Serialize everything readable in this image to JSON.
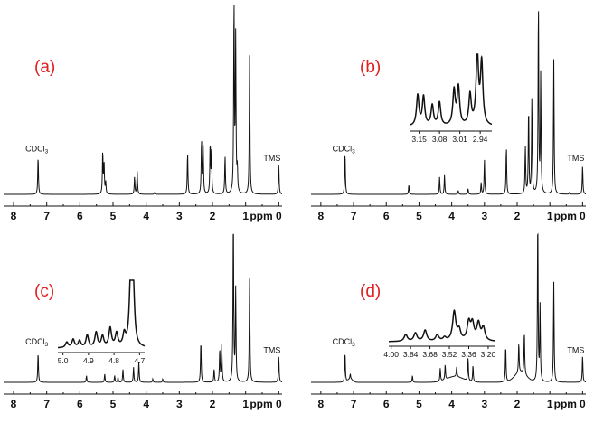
{
  "chart_data": [
    {
      "type": "line",
      "panel_label": "(a)",
      "x_unit": "ppm",
      "xlim": [
        8.3,
        -0.1
      ],
      "ticks": [
        "8",
        "7",
        "6",
        "5",
        "4",
        "3",
        "2",
        "1",
        "0"
      ],
      "baseline": "flat",
      "peaks": [
        {
          "x": 7.26,
          "y": 0.2
        },
        {
          "x": 5.31,
          "y": 0.22
        },
        {
          "x": 5.27,
          "y": 0.16
        },
        {
          "x": 5.22,
          "y": 0.06
        },
        {
          "x": 4.35,
          "y": 0.09
        },
        {
          "x": 4.27,
          "y": 0.12
        },
        {
          "x": 3.75,
          "y": 0.01
        },
        {
          "x": 2.75,
          "y": 0.22
        },
        {
          "x": 2.33,
          "y": 0.28
        },
        {
          "x": 2.28,
          "y": 0.24
        },
        {
          "x": 2.07,
          "y": 0.26
        },
        {
          "x": 2.03,
          "y": 0.22
        },
        {
          "x": 1.62,
          "y": 0.2
        },
        {
          "x": 1.35,
          "y": 1.0
        },
        {
          "x": 1.3,
          "y": 0.8
        },
        {
          "x": 1.25,
          "y": 0.12
        },
        {
          "x": 0.88,
          "y": 0.72
        },
        {
          "x": 0.0,
          "y": 0.16
        }
      ],
      "annotations": [
        {
          "text": "CDCl3",
          "x": 7.26
        },
        {
          "text": "TMS",
          "x": 0.0
        }
      ]
    },
    {
      "type": "line",
      "panel_label": "(b)",
      "x_unit": "ppm",
      "xlim": [
        8.3,
        -0.1
      ],
      "ticks": [
        "8",
        "7",
        "6",
        "5",
        "4",
        "3",
        "2",
        "1",
        "0"
      ],
      "baseline": "flat",
      "peaks": [
        {
          "x": 7.26,
          "y": 0.22
        },
        {
          "x": 5.31,
          "y": 0.05
        },
        {
          "x": 4.37,
          "y": 0.09
        },
        {
          "x": 4.22,
          "y": 0.1
        },
        {
          "x": 3.8,
          "y": 0.02
        },
        {
          "x": 3.5,
          "y": 0.03
        },
        {
          "x": 3.1,
          "y": 0.06
        },
        {
          "x": 3.0,
          "y": 0.18
        },
        {
          "x": 2.33,
          "y": 0.25
        },
        {
          "x": 1.75,
          "y": 0.25
        },
        {
          "x": 1.65,
          "y": 0.45
        },
        {
          "x": 1.55,
          "y": 0.5
        },
        {
          "x": 1.35,
          "y": 1.0
        },
        {
          "x": 1.28,
          "y": 0.62
        },
        {
          "x": 0.88,
          "y": 0.7
        },
        {
          "x": 0.4,
          "y": 0.01
        },
        {
          "x": 0.0,
          "y": 0.15
        }
      ],
      "inset": {
        "xlim": [
          3.18,
          2.9
        ],
        "ticks": [
          "3.15",
          "3.08",
          "3.01",
          "2.94"
        ],
        "peaks": [
          {
            "x": 3.155,
            "y": 0.42
          },
          {
            "x": 3.135,
            "y": 0.4
          },
          {
            "x": 3.105,
            "y": 0.28
          },
          {
            "x": 3.08,
            "y": 0.32
          },
          {
            "x": 3.03,
            "y": 0.48
          },
          {
            "x": 3.015,
            "y": 0.52
          },
          {
            "x": 2.975,
            "y": 0.42
          },
          {
            "x": 2.95,
            "y": 0.98
          },
          {
            "x": 2.935,
            "y": 0.85
          }
        ]
      },
      "annotations": [
        {
          "text": "CDCl3",
          "x": 7.26
        },
        {
          "text": "TMS",
          "x": 0.0
        }
      ]
    },
    {
      "type": "line",
      "panel_label": "(c)",
      "x_unit": "ppm",
      "xlim": [
        8.3,
        -0.1
      ],
      "ticks": [
        "8",
        "7",
        "6",
        "5",
        "4",
        "3",
        "2",
        "1",
        "0"
      ],
      "baseline": "flat",
      "peaks": [
        {
          "x": 7.26,
          "y": 0.18
        },
        {
          "x": 5.8,
          "y": 0.04
        },
        {
          "x": 5.25,
          "y": 0.05
        },
        {
          "x": 4.95,
          "y": 0.04
        },
        {
          "x": 4.85,
          "y": 0.03
        },
        {
          "x": 4.7,
          "y": 0.08
        },
        {
          "x": 4.38,
          "y": 0.09
        },
        {
          "x": 4.22,
          "y": 0.12
        },
        {
          "x": 3.8,
          "y": 0.02
        },
        {
          "x": 3.5,
          "y": 0.02
        },
        {
          "x": 2.35,
          "y": 0.25
        },
        {
          "x": 1.95,
          "y": 0.08
        },
        {
          "x": 1.78,
          "y": 0.2
        },
        {
          "x": 1.72,
          "y": 0.22
        },
        {
          "x": 1.37,
          "y": 1.0
        },
        {
          "x": 1.3,
          "y": 0.55
        },
        {
          "x": 0.88,
          "y": 0.62
        },
        {
          "x": 0.0,
          "y": 0.16
        }
      ],
      "inset": {
        "xlim": [
          5.02,
          4.68
        ],
        "ticks": [
          "5.0",
          "4.9",
          "4.8",
          "4.7"
        ],
        "peaks": [
          {
            "x": 4.985,
            "y": 0.08
          },
          {
            "x": 4.96,
            "y": 0.12
          },
          {
            "x": 4.935,
            "y": 0.1
          },
          {
            "x": 4.905,
            "y": 0.18
          },
          {
            "x": 4.87,
            "y": 0.22
          },
          {
            "x": 4.845,
            "y": 0.16
          },
          {
            "x": 4.815,
            "y": 0.28
          },
          {
            "x": 4.79,
            "y": 0.2
          },
          {
            "x": 4.76,
            "y": 0.18
          },
          {
            "x": 4.735,
            "y": 0.95
          },
          {
            "x": 4.725,
            "y": 0.9
          }
        ]
      },
      "annotations": [
        {
          "text": "CDCl3",
          "x": 7.26
        },
        {
          "text": "TMS",
          "x": 0.0
        }
      ]
    },
    {
      "type": "line",
      "panel_label": "(d)",
      "x_unit": "ppm",
      "xlim": [
        8.3,
        -0.1
      ],
      "ticks": [
        "8",
        "7",
        "6",
        "5",
        "4",
        "3",
        "2",
        "1",
        "0"
      ],
      "baseline": "broad",
      "peaks": [
        {
          "x": 7.26,
          "y": 0.18
        },
        {
          "x": 7.1,
          "y": 0.03
        },
        {
          "x": 5.2,
          "y": 0.04
        },
        {
          "x": 4.35,
          "y": 0.08
        },
        {
          "x": 4.2,
          "y": 0.09
        },
        {
          "x": 3.85,
          "y": 0.06
        },
        {
          "x": 3.5,
          "y": 0.14
        },
        {
          "x": 3.35,
          "y": 0.1
        },
        {
          "x": 2.35,
          "y": 0.22
        },
        {
          "x": 1.95,
          "y": 0.18
        },
        {
          "x": 1.78,
          "y": 0.26
        },
        {
          "x": 1.37,
          "y": 1.0
        },
        {
          "x": 1.3,
          "y": 0.45
        },
        {
          "x": 0.88,
          "y": 0.6
        },
        {
          "x": 0.0,
          "y": 0.16
        }
      ],
      "inset": {
        "xlim": [
          4.02,
          3.14
        ],
        "ticks": [
          "4.00",
          "3.84",
          "3.68",
          "3.52",
          "3.36",
          "3.20"
        ],
        "peaks": [
          {
            "x": 3.88,
            "y": 0.2
          },
          {
            "x": 3.8,
            "y": 0.24
          },
          {
            "x": 3.72,
            "y": 0.32
          },
          {
            "x": 3.62,
            "y": 0.18
          },
          {
            "x": 3.56,
            "y": 0.1
          },
          {
            "x": 3.48,
            "y": 0.85
          },
          {
            "x": 3.44,
            "y": 0.3
          },
          {
            "x": 3.36,
            "y": 0.52
          },
          {
            "x": 3.33,
            "y": 0.48
          },
          {
            "x": 3.28,
            "y": 0.5
          },
          {
            "x": 3.24,
            "y": 0.38
          }
        ]
      },
      "annotations": [
        {
          "text": "CDCl3",
          "x": 7.26
        },
        {
          "text": "TMS",
          "x": 0.0
        }
      ]
    }
  ]
}
